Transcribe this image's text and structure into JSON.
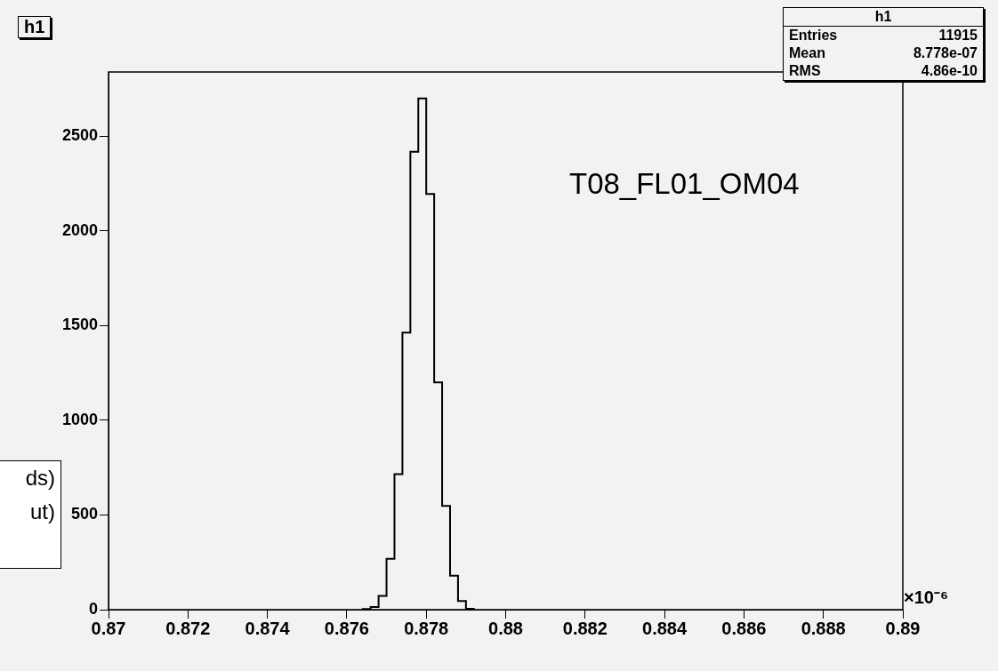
{
  "chart_data": {
    "type": "histogram",
    "title": "h1",
    "xlabel": "×10⁻⁶",
    "bins": [
      0.8764,
      0.8766,
      0.8768,
      0.877,
      0.8772,
      0.8774,
      0.8776,
      0.8778,
      0.878,
      0.8782,
      0.8784,
      0.8786,
      0.8788,
      0.879,
      0.8792
    ],
    "values": [
      3,
      14,
      73,
      269,
      716,
      1464,
      2419,
      2700,
      2196,
      1200,
      548,
      180,
      46,
      5
    ],
    "color": "#000000",
    "xlim": [
      0.87,
      0.89
    ],
    "xticks": [
      0.87,
      0.872,
      0.874,
      0.876,
      0.878,
      0.88,
      0.882,
      0.884,
      0.886,
      0.888,
      0.89
    ],
    "ylim": [
      0,
      2840
    ],
    "yticks": [
      0,
      500,
      1000,
      1500,
      2000,
      2500
    ],
    "grid": false,
    "legend": false,
    "annotations": [
      "Entries 11915",
      "Mean 8.778e-07",
      "RMS 4.86e-10",
      "T08_FL01_OM04",
      "ds)",
      "ut)"
    ]
  }
}
